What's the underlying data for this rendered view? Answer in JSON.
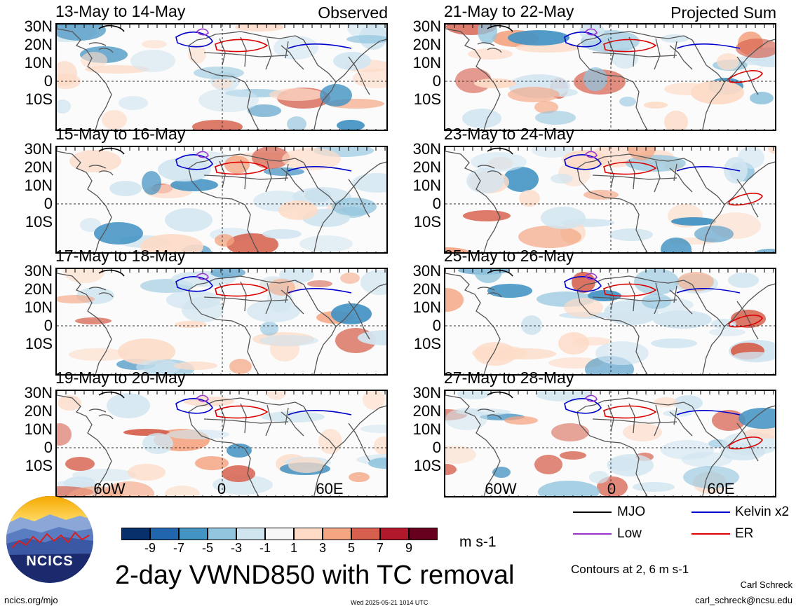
{
  "panels": [
    {
      "id": "p1",
      "title": "13-May to 14-May",
      "tag": "Observed"
    },
    {
      "id": "p2",
      "title": "21-May to 22-May",
      "tag": "Projected Sum"
    },
    {
      "id": "p3",
      "title": "15-May to 16-May",
      "tag": ""
    },
    {
      "id": "p4",
      "title": "23-May to 24-May",
      "tag": ""
    },
    {
      "id": "p5",
      "title": "17-May to 18-May",
      "tag": ""
    },
    {
      "id": "p6",
      "title": "25-May to 26-May",
      "tag": ""
    },
    {
      "id": "p7",
      "title": "19-May to 20-May",
      "tag": ""
    },
    {
      "id": "p8",
      "title": "27-May to 28-May",
      "tag": ""
    }
  ],
  "lat_labels": [
    "30N",
    "20N",
    "10N",
    "0",
    "10S"
  ],
  "lon_labels": [
    "60W",
    "0",
    "60E"
  ],
  "colorbar": {
    "colors": [
      "#08306b",
      "#2166ac",
      "#4393c3",
      "#92c5de",
      "#d1e5f0",
      "#f7f7f7",
      "#fddbc7",
      "#f4a582",
      "#d6604d",
      "#b2182b",
      "#67001f"
    ],
    "ticks": [
      "-9",
      "-7",
      "-5",
      "-3",
      "-1",
      "1",
      "3",
      "5",
      "7",
      "9"
    ],
    "units": "m s-1"
  },
  "main_title": "2-day VWND850 with TC removal",
  "legend": {
    "mjo": {
      "label": "MJO",
      "color": "#000000"
    },
    "kelvin": {
      "label": "Kelvin x2",
      "color": "#0000cc"
    },
    "low": {
      "label": "Low",
      "color": "#9933cc"
    },
    "er": {
      "label": "ER",
      "color": "#dd0000"
    }
  },
  "contours_note": "Contours at 2, 6 m s-1",
  "logo_text": "NCICS",
  "footer": {
    "url": "ncics.org/mjo",
    "timestamp": "Wed 2025-05-21 1014 UTC",
    "author": "Carl Schreck",
    "email": "carl_schreck@ncsu.edu"
  }
}
